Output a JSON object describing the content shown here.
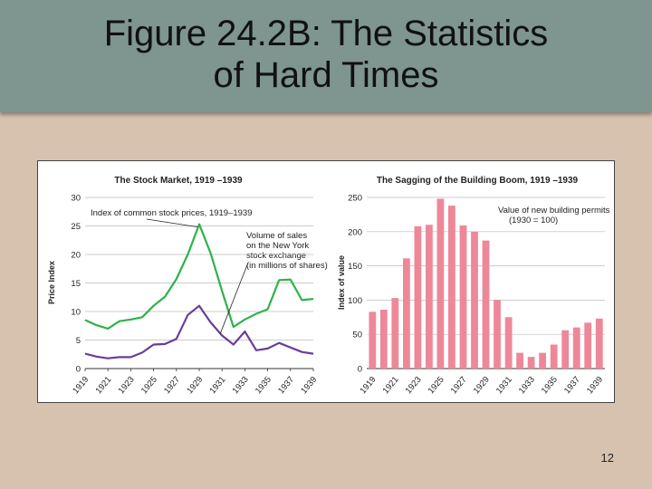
{
  "slide": {
    "title_line1": "Figure 24.2B: The Statistics",
    "title_line2": "of Hard Times",
    "page_number": "12"
  },
  "colors": {
    "title_band": "#7e9590",
    "background": "#d7c2b0",
    "stock_index": "#2fb24a",
    "volume": "#6a3d9a",
    "bars": "#ee8899"
  },
  "chart_data": [
    {
      "type": "line",
      "title": "The Stock Market, 1919 –1939",
      "ylabel": "Price Index",
      "xlabel": "",
      "ylim": [
        0,
        30
      ],
      "yticks": [
        0,
        5,
        10,
        15,
        20,
        25,
        30
      ],
      "xlim": [
        1919,
        1939
      ],
      "x_tick_labels": [
        "1919",
        "1921",
        "1923",
        "1925",
        "1927",
        "1929",
        "1931",
        "1933",
        "1935",
        "1937",
        "1939"
      ],
      "grid": "horizontal",
      "x": [
        1919,
        1920,
        1921,
        1922,
        1923,
        1924,
        1925,
        1926,
        1927,
        1928,
        1929,
        1930,
        1931,
        1932,
        1933,
        1934,
        1935,
        1936,
        1937,
        1938,
        1939
      ],
      "series": [
        {
          "name": "Index of common stock prices, 1919–1939",
          "color": "#2fb24a",
          "values": [
            8.5,
            7.6,
            7.0,
            8.3,
            8.6,
            9.0,
            11.0,
            12.6,
            15.7,
            20.0,
            25.3,
            20.2,
            13.6,
            7.3,
            8.6,
            9.6,
            10.4,
            15.5,
            15.6,
            12.0,
            12.2
          ]
        },
        {
          "name": "Volume of sales on the New York stock exchange (in millions of shares)",
          "color": "#6a3d9a",
          "values": [
            2.6,
            2.1,
            1.8,
            2.0,
            2.0,
            2.8,
            4.2,
            4.3,
            5.2,
            9.4,
            11.0,
            8.1,
            5.8,
            4.2,
            6.5,
            3.2,
            3.5,
            4.5,
            3.7,
            2.9,
            2.6
          ]
        }
      ],
      "annotations": [
        "Index of common stock prices, 1919–1939",
        "Volume of sales",
        "on the New York",
        "stock exchange",
        "(in millions of shares)"
      ]
    },
    {
      "type": "bar",
      "title": "The Sagging of the Building Boom, 1919 –1939",
      "ylabel": "Index of value",
      "xlabel": "",
      "ylim": [
        0,
        250
      ],
      "yticks": [
        0,
        50,
        100,
        150,
        200,
        250
      ],
      "x_tick_labels": [
        "1919",
        "1921",
        "1923",
        "1925",
        "1927",
        "1929",
        "1931",
        "1933",
        "1935",
        "1937",
        "1939"
      ],
      "grid": "horizontal",
      "categories": [
        "1919",
        "1920",
        "1921",
        "1922",
        "1923",
        "1924",
        "1925",
        "1926",
        "1927",
        "1928",
        "1929",
        "1930",
        "1931",
        "1932",
        "1933",
        "1934",
        "1935",
        "1936",
        "1937",
        "1938",
        "1939"
      ],
      "values": [
        83,
        86,
        103,
        161,
        208,
        210,
        248,
        238,
        209,
        200,
        187,
        100,
        75,
        23,
        17,
        23,
        35,
        56,
        60,
        67,
        73
      ],
      "annotations": [
        "Value of new building permits",
        "(1930 = 100)"
      ]
    }
  ]
}
